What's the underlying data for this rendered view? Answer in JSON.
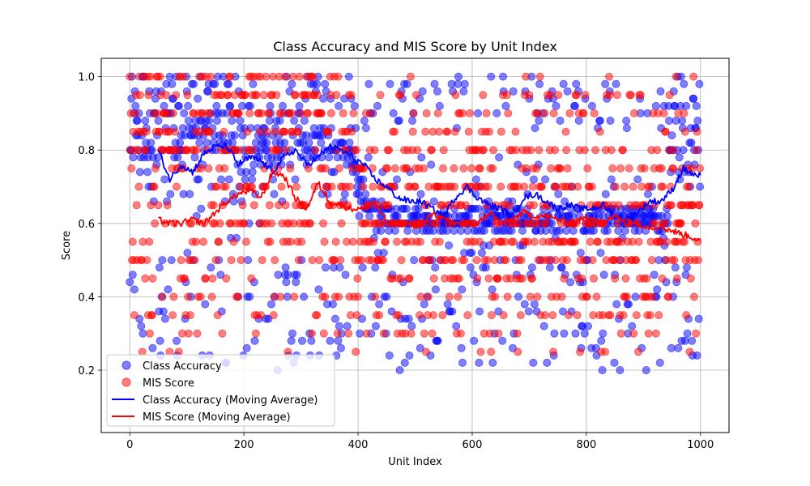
{
  "chart_data": {
    "type": "scatter",
    "title": "Class Accuracy and MIS Score by Unit Index",
    "xlabel": "Unit Index",
    "ylabel": "Score",
    "xlim": [
      -50,
      1050
    ],
    "ylim": [
      0.03,
      1.05
    ],
    "xticks": [
      0,
      200,
      400,
      600,
      800,
      1000
    ],
    "yticks": [
      0.2,
      0.4,
      0.6,
      0.8,
      1.0
    ],
    "ytick_labels": [
      "0.2",
      "0.4",
      "0.6",
      "0.8",
      "1.0"
    ],
    "grid": true,
    "legend_position": "lower-left",
    "n_units": 1000,
    "colors": {
      "class": "#0000ff",
      "mis": "#ff0000"
    },
    "series": [
      {
        "name": "Class Accuracy",
        "kind": "scatter",
        "color": "#0000ff",
        "alpha": 0.5,
        "values": [
          0.92,
          0.88,
          0.79,
          0.8,
          0.74,
          0.7,
          0.78,
          0.8,
          0.86,
          0.96,
          0.92,
          0.92,
          1.0,
          0.88,
          0.84,
          0.8,
          0.92,
          0.86,
          0.74,
          0.78,
          0.72,
          0.84,
          0.96,
          0.9,
          0.96,
          0.86,
          0.8,
          0.88,
          0.82,
          0.86,
          0.8,
          0.74,
          0.78,
          0.82,
          0.76,
          0.84,
          0.74,
          0.82,
          0.7,
          0.8,
          0.82,
          0.78,
          0.8,
          0.86,
          0.9,
          0.8,
          0.84,
          0.76,
          0.86,
          0.78,
          0.88,
          0.56,
          0.8,
          0.84,
          0.86,
          0.7,
          0.74,
          0.62,
          0.78,
          0.36,
          0.92,
          0.72,
          0.8,
          0.86,
          0.98,
          0.66,
          0.9,
          0.42,
          0.9,
          0.74,
          0.88,
          0.82,
          0.86,
          0.8,
          0.92,
          0.78,
          0.86,
          0.86,
          0.88,
          0.8,
          0.74,
          0.92,
          0.96,
          0.86,
          0.78,
          0.92,
          0.88,
          0.7,
          0.82,
          0.84,
          0.84,
          0.8,
          0.76,
          0.74,
          0.68,
          0.9,
          0.84,
          0.88,
          0.86,
          1.0,
          0.96,
          0.66,
          0.84,
          0.88,
          0.86,
          0.68,
          0.84,
          0.88,
          0.84,
          0.72,
          0.86,
          0.8,
          0.88,
          0.84,
          0.82,
          0.88,
          0.86,
          0.74,
          0.72,
          0.8,
          0.84,
          0.58,
          0.82,
          0.88,
          0.86,
          0.64,
          0.88,
          0.84,
          0.9,
          0.88,
          0.8,
          0.82,
          0.74,
          0.86,
          0.88,
          0.82,
          0.96,
          0.84,
          0.98,
          0.88,
          0.66,
          0.9,
          0.82,
          0.7,
          0.74,
          0.86,
          0.8,
          0.82,
          0.84,
          0.96,
          0.84,
          0.76,
          0.8,
          0.94,
          0.86,
          0.82,
          0.78,
          0.84,
          0.82,
          0.44,
          0.86,
          0.88,
          0.42,
          0.84,
          0.86,
          0.82,
          0.8,
          0.8,
          0.22,
          0.9,
          0.76,
          0.84,
          0.82,
          0.86,
          0.74,
          0.78,
          0.92,
          0.56,
          0.84,
          0.88,
          0.86,
          0.68,
          0.72,
          0.8,
          0.84,
          0.82,
          0.8,
          0.56,
          0.9,
          0.76,
          0.82,
          0.84,
          0.7,
          0.88,
          0.86,
          0.74,
          0.78,
          0.84,
          0.84,
          0.64,
          0.8,
          0.86,
          0.82,
          0.78,
          0.74,
          0.76,
          0.86,
          0.82,
          0.8,
          0.7,
          0.78,
          0.84,
          0.86,
          0.8,
          0.72,
          0.84,
          0.9,
          0.76,
          0.74,
          0.8,
          0.68,
          0.82,
          0.8,
          0.78,
          0.86,
          0.84,
          0.66,
          0.74,
          0.62,
          0.8,
          0.76,
          0.82,
          0.84,
          0.56,
          0.76,
          0.82,
          0.78,
          0.72,
          0.84,
          0.26,
          0.74,
          0.8,
          0.78,
          0.56,
          0.82,
          0.76,
          0.74,
          0.7,
          0.38,
          0.78,
          0.84,
          0.72,
          0.76,
          0.8,
          0.74,
          0.86,
          0.82,
          0.84,
          0.78,
          0.76,
          0.46,
          0.84,
          0.8,
          0.6,
          0.82,
          0.78,
          0.76,
          0.74,
          0.92,
          0.8,
          0.84,
          0.82,
          0.78,
          0.76,
          0.28,
          0.88,
          0.82,
          0.8,
          0.86,
          0.9,
          0.84,
          0.82,
          0.8,
          0.7,
          0.86,
          0.84,
          0.8,
          0.82,
          0.88,
          0.84,
          0.86,
          0.76,
          0.8,
          0.84,
          0.82,
          0.78,
          0.86,
          0.8,
          0.84,
          0.82,
          0.78,
          0.6,
          0.8,
          0.84,
          0.82,
          0.86,
          0.88,
          0.8,
          0.82,
          0.84,
          0.76,
          0.8,
          0.84,
          0.78,
          0.82,
          0.86,
          0.84,
          0.98,
          0.82,
          0.8,
          0.84,
          0.78,
          0.82,
          0.86,
          0.8,
          0.84,
          0.82,
          0.78,
          0.8,
          0.84,
          0.82,
          0.42,
          0.8,
          0.84,
          0.86,
          0.82,
          0.78,
          0.8,
          0.84,
          0.82,
          0.86,
          0.8,
          0.78,
          0.82,
          0.84,
          0.8,
          0.38,
          0.82,
          0.84,
          0.78,
          0.8,
          0.82,
          0.84,
          0.86,
          0.82,
          0.8,
          0.84,
          0.82,
          0.78,
          0.8,
          0.84,
          0.82,
          0.86,
          0.8,
          0.78,
          0.82,
          0.84,
          0.78,
          0.8,
          0.82,
          1.0,
          0.84,
          0.8,
          0.82,
          0.78,
          0.8,
          0.84,
          0.82,
          0.46,
          0.8,
          0.84,
          0.82,
          0.78,
          0.8,
          0.76,
          0.82,
          0.8,
          0.78,
          0.82,
          0.76,
          0.78,
          0.74,
          0.8,
          0.76,
          0.24,
          0.78,
          0.72,
          0.74,
          0.76,
          0.7,
          0.72,
          0.68,
          0.74,
          0.7,
          0.72,
          0.66,
          0.7,
          0.34,
          0.68,
          0.72,
          0.66,
          0.7,
          0.64,
          0.68,
          0.66,
          0.62,
          0.7,
          0.64,
          0.68,
          0.66,
          0.62,
          0.9,
          0.64,
          0.68,
          0.62,
          0.66,
          0.6,
          0.64,
          0.62,
          0.66,
          0.6,
          0.32,
          0.62,
          0.64,
          0.6,
          0.66,
          0.62,
          0.6,
          0.64,
          0.62,
          0.58,
          0.66,
          0.62,
          0.6,
          0.64,
          0.58,
          0.62,
          0.6,
          0.64,
          0.62,
          0.4,
          0.6,
          0.64,
          0.62,
          0.58,
          0.6,
          0.62,
          0.64,
          0.6,
          0.62,
          0.58,
          0.6,
          0.64,
          0.62,
          0.6,
          0.58,
          0.62,
          0.64,
          0.6,
          0.62,
          0.58,
          0.6,
          0.62,
          0.2,
          0.6,
          0.64,
          0.62,
          0.58,
          0.6,
          0.62,
          0.64,
          0.58,
          0.6,
          0.62,
          0.6,
          0.64,
          0.62,
          0.58,
          0.6,
          0.62,
          0.64,
          0.6,
          0.58,
          0.62,
          0.6,
          0.64,
          0.62,
          0.58,
          0.6,
          0.62,
          0.6,
          0.64,
          0.58,
          0.62,
          0.6,
          0.62,
          0.64,
          0.6,
          0.58,
          0.62,
          0.6,
          0.64,
          0.62,
          0.6,
          0.58,
          0.62,
          0.64,
          0.6,
          0.62,
          0.6,
          0.58,
          0.64,
          0.62,
          0.6,
          0.62,
          0.58,
          0.6,
          0.64,
          0.62,
          0.6,
          0.62,
          0.6,
          0.58,
          0.64,
          0.62,
          0.6,
          0.62,
          0.58,
          0.6,
          0.64,
          0.62,
          0.6,
          0.62,
          0.6,
          0.58,
          0.64,
          0.62,
          0.6,
          0.62,
          0.58,
          0.6,
          0.64,
          0.62,
          0.6,
          0.62,
          0.6,
          0.58,
          0.64,
          0.62,
          0.6,
          0.62,
          0.58,
          0.6,
          0.64,
          0.62,
          0.6,
          0.62,
          0.6,
          0.58,
          0.64,
          0.62,
          0.6,
          0.62,
          0.58,
          0.6,
          0.64,
          0.62,
          0.6,
          0.62,
          0.6,
          0.58,
          0.64,
          0.62,
          0.6,
          0.62,
          0.58,
          0.6,
          0.64,
          0.62,
          0.6,
          0.62,
          0.6,
          0.58,
          0.64,
          0.62,
          0.6,
          0.62,
          0.58,
          0.6,
          0.64,
          0.62,
          0.6,
          0.62,
          0.6,
          0.58,
          0.64,
          0.62,
          0.6,
          0.62,
          0.58,
          0.6,
          0.64,
          0.62,
          0.6,
          0.62,
          0.6,
          0.58,
          0.64,
          0.62,
          0.6,
          0.62,
          0.58,
          0.6,
          0.64,
          0.62,
          0.6,
          0.62,
          0.6,
          0.58,
          0.64,
          0.62,
          0.6,
          0.62,
          0.58,
          0.6,
          0.64,
          0.62,
          0.6,
          0.62,
          0.6,
          0.58,
          0.64,
          0.62,
          0.6,
          0.62,
          0.58,
          0.6,
          0.64,
          0.62,
          0.6,
          0.62,
          0.6,
          0.58,
          0.64,
          0.62,
          0.6,
          0.62,
          0.58,
          0.6,
          0.64,
          0.62,
          0.6,
          0.62,
          0.6,
          0.58,
          0.64,
          0.62,
          0.6,
          0.62,
          0.58,
          0.6,
          0.64,
          0.62,
          0.6,
          0.62,
          0.6,
          0.58,
          0.64,
          0.62,
          0.6,
          0.62,
          0.58,
          0.6,
          0.64,
          0.62,
          0.6,
          0.62,
          0.6,
          0.58,
          0.64,
          0.62,
          0.6,
          0.62,
          0.58,
          0.6,
          0.64,
          0.62,
          0.6,
          0.62,
          0.6,
          0.58,
          0.64,
          0.62,
          0.6,
          0.62,
          0.58,
          0.6,
          0.64,
          0.62,
          0.6,
          0.62,
          0.6,
          0.58,
          0.64,
          0.62,
          0.6,
          0.62,
          0.58,
          0.6,
          0.64,
          0.62,
          0.6,
          0.62,
          0.6,
          0.58,
          0.64,
          0.62,
          0.6,
          0.62,
          0.58,
          0.6,
          0.64,
          0.62,
          0.6,
          0.62,
          0.6,
          0.58,
          0.64,
          0.62,
          0.6,
          0.62,
          0.58,
          0.6,
          0.64,
          0.62,
          0.6,
          0.62,
          0.6,
          0.58,
          0.64,
          0.62,
          0.6,
          0.62,
          0.58,
          0.6,
          0.64,
          0.62,
          0.6,
          0.62,
          0.6,
          0.58,
          0.64,
          0.62,
          0.6,
          0.62,
          0.58,
          0.6,
          0.64,
          0.62,
          0.6,
          0.62,
          0.6,
          0.58,
          0.64,
          0.62,
          0.6,
          0.62,
          0.58,
          0.6,
          0.64,
          0.62,
          0.6,
          0.62,
          0.6,
          0.58,
          0.64,
          0.62,
          0.6,
          0.62,
          0.58,
          0.6,
          0.64,
          0.62,
          0.6,
          0.62,
          0.6,
          0.58,
          0.64,
          0.62,
          0.6,
          0.62,
          0.58,
          0.6,
          0.64,
          0.62,
          0.6,
          0.62,
          0.6,
          0.58,
          0.64,
          0.62,
          0.6,
          0.62,
          0.58,
          0.6,
          0.64,
          0.62,
          0.6,
          0.62,
          0.6,
          0.58,
          0.64,
          0.62,
          0.6,
          0.62,
          0.58,
          0.6,
          0.64,
          0.62,
          0.6,
          0.62,
          0.6,
          0.58,
          0.64,
          0.62,
          0.6,
          0.62,
          0.58,
          0.6,
          0.64,
          0.62,
          0.6,
          0.62,
          0.6,
          0.58,
          0.64,
          0.62,
          0.6,
          0.62,
          0.58,
          0.6,
          0.64,
          0.62,
          0.6,
          0.62,
          0.6,
          0.58,
          0.64,
          0.62,
          0.6,
          0.62,
          0.58,
          0.6,
          0.64,
          0.62,
          0.6,
          0.62,
          0.6,
          0.58,
          0.64,
          0.62,
          0.6,
          0.62,
          0.58,
          0.6,
          0.64,
          0.62,
          0.6,
          0.62,
          0.6,
          0.58,
          0.64,
          0.62,
          0.6,
          0.62,
          0.58,
          0.6,
          0.64,
          0.62,
          0.6,
          0.62,
          0.6,
          0.58,
          0.64,
          0.62,
          0.6,
          0.62,
          0.58,
          0.6,
          0.64,
          0.62,
          0.6,
          0.62,
          0.6,
          0.58,
          0.64,
          0.62,
          0.6,
          0.62,
          0.58,
          0.6,
          0.64,
          0.62,
          0.6,
          0.62,
          0.6,
          0.58,
          0.64,
          0.62,
          0.6,
          0.62,
          0.58,
          0.6,
          0.64,
          0.62,
          0.6,
          0.62,
          0.6,
          0.58,
          0.64,
          0.62,
          0.6,
          0.62,
          0.58,
          0.6,
          0.64,
          0.62,
          0.6,
          0.62,
          0.6,
          0.58,
          0.64,
          0.62,
          0.6
        ]
      },
      {
        "name": "MIS Score",
        "kind": "scatter",
        "color": "#ff0000",
        "alpha": 0.5,
        "levels": [
          0.25,
          0.3,
          0.35,
          0.4,
          0.45,
          0.5,
          0.55,
          0.6,
          0.65,
          0.7,
          0.75,
          0.8,
          0.85,
          0.9,
          0.95,
          1.0
        ]
      },
      {
        "name": "Class Accuracy (Moving Average)",
        "kind": "line",
        "color": "#0000ff",
        "x": [
          50,
          70,
          90,
          110,
          130,
          150,
          170,
          190,
          210,
          230,
          250,
          270,
          290,
          310,
          330,
          350,
          370,
          390,
          410,
          430,
          450,
          470,
          490,
          510,
          530,
          550,
          570,
          590,
          610,
          630,
          650,
          670,
          690,
          710,
          730,
          750,
          770,
          790,
          810,
          830,
          850,
          870,
          890,
          910,
          930,
          950,
          970,
          990,
          1000
        ],
        "values": [
          0.8,
          0.72,
          0.76,
          0.74,
          0.79,
          0.81,
          0.81,
          0.76,
          0.78,
          0.77,
          0.74,
          0.78,
          0.8,
          0.76,
          0.78,
          0.81,
          0.8,
          0.78,
          0.76,
          0.72,
          0.7,
          0.67,
          0.66,
          0.66,
          0.64,
          0.62,
          0.67,
          0.7,
          0.67,
          0.65,
          0.64,
          0.62,
          0.67,
          0.68,
          0.66,
          0.64,
          0.65,
          0.64,
          0.64,
          0.65,
          0.62,
          0.61,
          0.63,
          0.66,
          0.66,
          0.69,
          0.75,
          0.73,
          0.73
        ]
      },
      {
        "name": "MIS Score (Moving Average)",
        "kind": "line",
        "color": "#ff0000",
        "x": [
          50,
          70,
          90,
          110,
          130,
          150,
          170,
          190,
          210,
          230,
          250,
          270,
          290,
          310,
          330,
          350,
          370,
          390,
          410,
          430,
          450,
          470,
          490,
          510,
          530,
          550,
          570,
          590,
          610,
          630,
          650,
          670,
          690,
          710,
          730,
          750,
          770,
          790,
          810,
          830,
          850,
          870,
          890,
          910,
          930,
          950,
          970,
          990,
          1000
        ],
        "values": [
          0.61,
          0.6,
          0.6,
          0.61,
          0.6,
          0.63,
          0.66,
          0.68,
          0.69,
          0.67,
          0.74,
          0.73,
          0.67,
          0.64,
          0.71,
          0.66,
          0.65,
          0.64,
          0.64,
          0.66,
          0.6,
          0.6,
          0.6,
          0.59,
          0.63,
          0.61,
          0.6,
          0.6,
          0.6,
          0.63,
          0.6,
          0.61,
          0.63,
          0.62,
          0.62,
          0.61,
          0.6,
          0.61,
          0.62,
          0.6,
          0.62,
          0.61,
          0.6,
          0.59,
          0.59,
          0.58,
          0.57,
          0.56,
          0.55
        ]
      }
    ],
    "legend": [
      {
        "label": "Class Accuracy",
        "kind": "marker",
        "color": "#0000ff"
      },
      {
        "label": "MIS Score",
        "kind": "marker",
        "color": "#ff0000"
      },
      {
        "label": "Class Accuracy (Moving Average)",
        "kind": "line",
        "color": "#0000ff"
      },
      {
        "label": "MIS Score (Moving Average)",
        "kind": "line",
        "color": "#ff0000"
      }
    ]
  }
}
